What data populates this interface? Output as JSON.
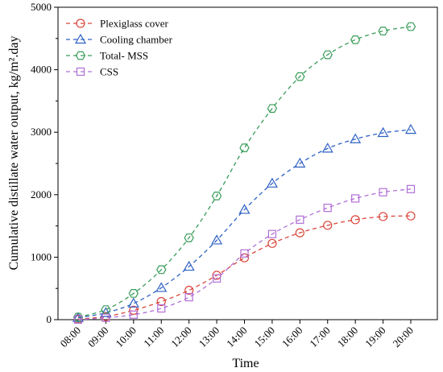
{
  "chart_data": {
    "type": "line",
    "title": "",
    "xlabel": "Time",
    "ylabel": "Cumulative distillate water output, kg/m².day",
    "ylim": [
      0,
      5000
    ],
    "yticks": [
      0,
      1000,
      2000,
      3000,
      4000,
      5000
    ],
    "grid": false,
    "legend_position": "top-left",
    "categories": [
      "08:00",
      "09:00",
      "10:00",
      "11:00",
      "12:00",
      "13:00",
      "14:00",
      "15:00",
      "16:00",
      "17:00",
      "18:00",
      "19:00",
      "20:00"
    ],
    "series": [
      {
        "name": "Plexiglass cover",
        "color": "#d9463c",
        "marker": "circle",
        "values": [
          10,
          50,
          150,
          290,
          470,
          710,
          990,
          1220,
          1390,
          1510,
          1600,
          1650,
          1660
        ]
      },
      {
        "name": "Cooling chamber",
        "color": "#2f62c4",
        "marker": "triangle",
        "values": [
          30,
          110,
          260,
          510,
          850,
          1270,
          1760,
          2180,
          2500,
          2740,
          2890,
          2990,
          3040
        ]
      },
      {
        "name": "Total- MSS",
        "color": "#3a9c5a",
        "marker": "hexagon",
        "values": [
          40,
          160,
          420,
          800,
          1310,
          1980,
          2750,
          3380,
          3890,
          4240,
          4480,
          4620,
          4690
        ]
      },
      {
        "name": "CSS",
        "color": "#b06fd6",
        "marker": "square",
        "values": [
          0,
          30,
          80,
          180,
          360,
          660,
          1060,
          1370,
          1600,
          1790,
          1940,
          2040,
          2090
        ]
      }
    ]
  }
}
